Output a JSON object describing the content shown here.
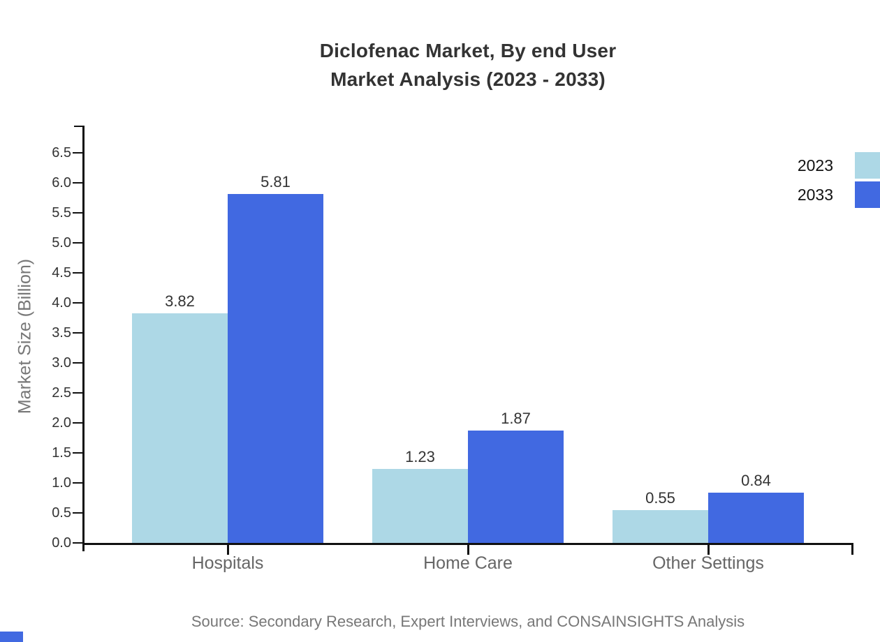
{
  "header": {
    "title_line1": "Diclofenac Market, By end User",
    "title_line2": "Market Analysis (2023 - 2033)"
  },
  "footer": {
    "source_note": "Source: Secondary Research, Expert Interviews, and CONSAINSIGHTS Analysis"
  },
  "colors": {
    "series_2023": "#ADD8E6",
    "series_2033": "#4169E1",
    "accent": "#4169E1",
    "axis": "#111111",
    "title_text": "#333333",
    "category_text": "#666666",
    "muted_text": "#777777",
    "value_text": "#333333"
  },
  "chart_data": {
    "type": "bar",
    "title": "Diclofenac Market, By end User\nMarket Analysis (2023 - 2033)",
    "categories": [
      "Hospitals",
      "Home Care",
      "Other Settings"
    ],
    "series": [
      {
        "name": "2023",
        "color": "#ADD8E6",
        "values": [
          3.82,
          1.23,
          0.55
        ]
      },
      {
        "name": "2033",
        "color": "#4169E1",
        "values": [
          5.81,
          1.87,
          0.84
        ]
      }
    ],
    "value_labels": [
      "3.82",
      "5.81",
      "1.23",
      "1.87",
      "0.55",
      "0.84"
    ],
    "xlabel": "",
    "ylabel": "Market Size (Billion)",
    "ylim": [
      0,
      7
    ],
    "yticks": [
      0.0,
      0.5,
      1.0,
      1.5,
      2.0,
      2.5,
      3.0,
      3.5,
      4.0,
      4.5,
      5.0,
      5.5,
      6.0,
      6.5
    ],
    "grid": false,
    "legend_position": "top-right",
    "bar_value_labels": true,
    "source_note": "Source: Secondary Research, Expert Interviews, and CONSAINSIGHTS Analysis"
  }
}
